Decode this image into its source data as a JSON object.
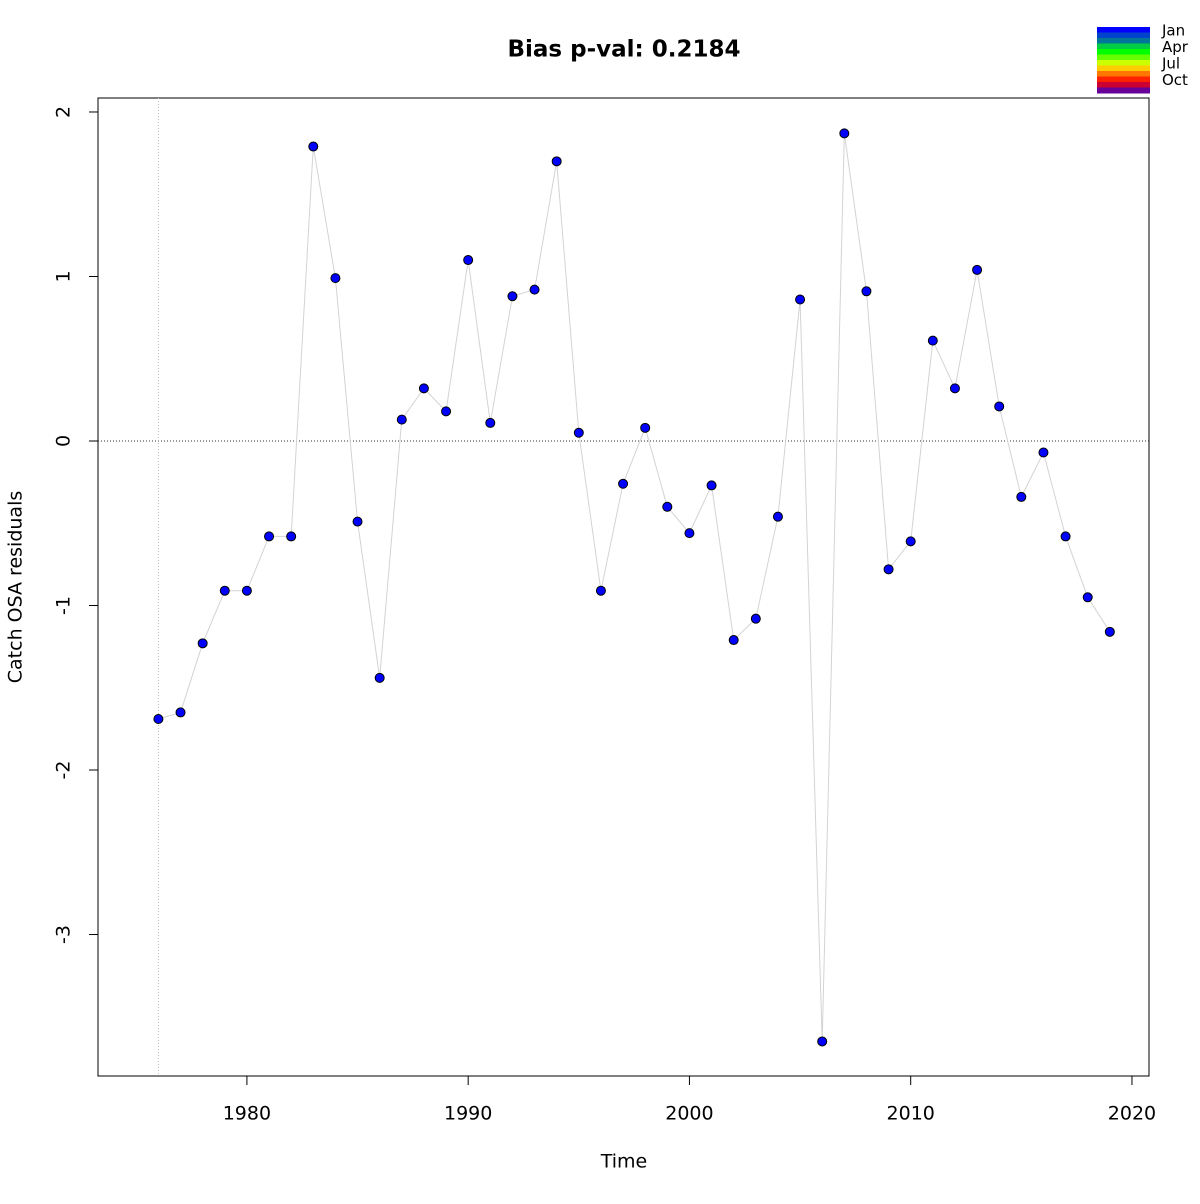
{
  "chart_data": {
    "type": "line",
    "title": "Bias p-val: 0.2184",
    "title_color": "#228b22",
    "xlabel": "Time",
    "ylabel": "Catch OSA residuals",
    "x": [
      1976,
      1977,
      1978,
      1979,
      1980,
      1981,
      1982,
      1983,
      1984,
      1985,
      1986,
      1987,
      1988,
      1989,
      1990,
      1991,
      1992,
      1993,
      1994,
      1995,
      1996,
      1997,
      1998,
      1999,
      2000,
      2001,
      2002,
      2003,
      2004,
      2005,
      2006,
      2007,
      2008,
      2009,
      2010,
      2011,
      2012,
      2013,
      2014,
      2015,
      2016,
      2017,
      2018,
      2019
    ],
    "series": [
      {
        "color": "#0000ff",
        "line_color": "#d3d3d3",
        "values": [
          -1.69,
          -1.65,
          -1.23,
          -0.91,
          -0.91,
          -0.58,
          -0.58,
          1.79,
          0.99,
          -0.49,
          -1.44,
          0.13,
          0.32,
          0.18,
          1.1,
          0.11,
          0.88,
          0.92,
          1.7,
          0.05,
          -0.91,
          -0.26,
          0.08,
          -0.4,
          -0.56,
          -0.27,
          -1.21,
          -1.08,
          -0.46,
          0.86,
          -3.65,
          1.87,
          0.91,
          -0.78,
          -0.61,
          0.61,
          0.32,
          1.04,
          0.21,
          -0.34,
          -0.07,
          -0.58,
          -0.95,
          -1.16
        ]
      }
    ],
    "xlim": [
      1973.27,
      2020.77
    ],
    "ylim": [
      -3.86,
      2.085
    ],
    "xticks": [
      1980,
      1990,
      2000,
      2010,
      2020
    ],
    "yticks": [
      -3,
      -2,
      -1,
      0,
      1,
      2
    ],
    "hline": 0,
    "vline": 1976,
    "legend": {
      "labels": [
        "Jan",
        "Apr",
        "Jul",
        "Oct"
      ],
      "colors": [
        "#0000ff",
        "#0044cc",
        "#007799",
        "#00cc44",
        "#00ff00",
        "#66ff00",
        "#ccff00",
        "#ffcc00",
        "#ff7700",
        "#ff2200",
        "#cc0033",
        "#660099"
      ]
    }
  }
}
